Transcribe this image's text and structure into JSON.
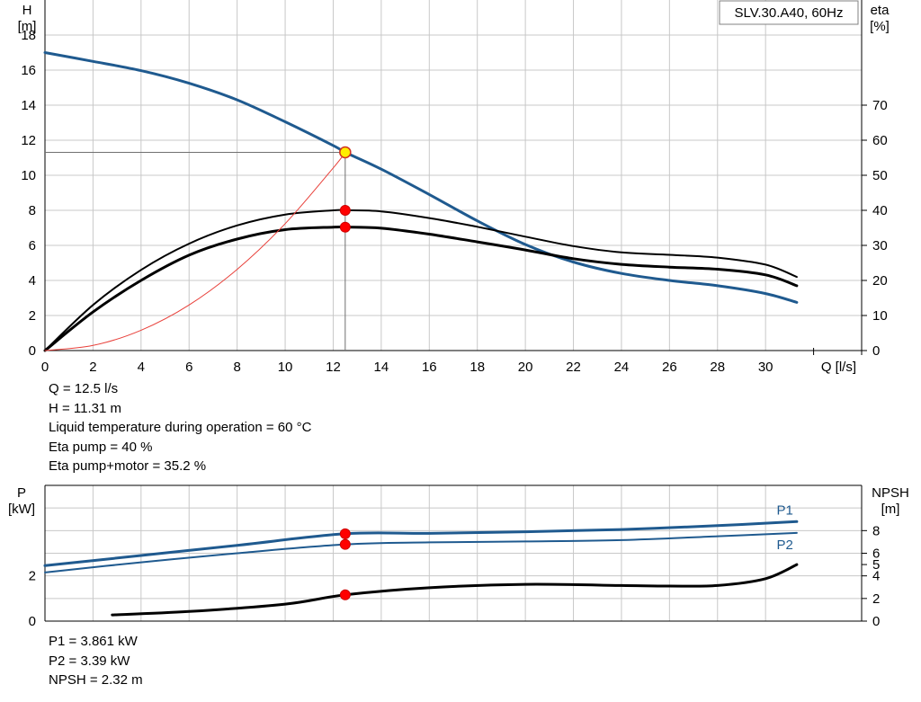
{
  "chart_data": [
    {
      "type": "line",
      "title": "SLV.30.A40, 60Hz",
      "xlabel": "Q [l/s]",
      "ylabel": "H\n[m]",
      "y2label": "eta\n[%]",
      "xlim": [
        0,
        34
      ],
      "ylim": [
        0,
        20
      ],
      "y2lim": [
        0,
        100
      ],
      "x_ticks": [
        0,
        2,
        4,
        6,
        8,
        10,
        12,
        14,
        16,
        18,
        20,
        22,
        24,
        26,
        28,
        30
      ],
      "y_ticks": [
        0,
        2,
        4,
        6,
        8,
        10,
        12,
        14,
        16,
        18
      ],
      "y2_ticks": [
        0,
        10,
        20,
        30,
        40,
        50,
        60,
        70
      ],
      "grid": true,
      "series": [
        {
          "axis": "y",
          "color": "#1f5a8f",
          "x": [
            0,
            2,
            4,
            6,
            8,
            10,
            12,
            12.5,
            14,
            16,
            18,
            20,
            22,
            24,
            26,
            28,
            30,
            31.3
          ],
          "y": [
            17.0,
            16.5,
            15.97,
            15.25,
            14.3,
            13.05,
            11.7,
            11.31,
            10.35,
            8.9,
            7.4,
            6.05,
            5.05,
            4.4,
            4.0,
            3.7,
            3.25,
            2.75
          ]
        },
        {
          "axis": "y2",
          "color": "#000000",
          "x": [
            0,
            2,
            4,
            6,
            8,
            10,
            12,
            12.5,
            14,
            16,
            18,
            20,
            22,
            24,
            26,
            28,
            30,
            31.3
          ],
          "y": [
            0,
            13,
            23,
            30.5,
            35.7,
            38.8,
            40,
            40,
            39.7,
            37.8,
            35.3,
            32.5,
            29.8,
            28,
            27.3,
            26.5,
            24.5,
            21
          ]
        },
        {
          "axis": "y2",
          "color": "#000000",
          "x": [
            0,
            2,
            4,
            6,
            8,
            10,
            12,
            12.5,
            14,
            16,
            18,
            20,
            22,
            24,
            26,
            28,
            30,
            31.3
          ],
          "y": [
            0,
            11,
            20,
            27.2,
            31.8,
            34.5,
            35.2,
            35.2,
            34.9,
            33.2,
            31,
            28.7,
            26.2,
            24.6,
            23.8,
            23.2,
            21.6,
            18.5
          ]
        },
        {
          "axis": "y",
          "color": "#e8403a",
          "x": [
            0,
            2,
            4,
            6,
            8,
            10,
            12,
            12.5
          ],
          "y": [
            0,
            0.29,
            1.16,
            2.6,
            4.63,
            7.24,
            10.42,
            11.31
          ]
        }
      ],
      "operating_point": {
        "x": 12.5,
        "y": 11.31
      },
      "markers": [
        {
          "x": 12.5,
          "y2": 40
        },
        {
          "x": 12.5,
          "y2": 35.2
        }
      ]
    },
    {
      "type": "line",
      "ylabel": "P\n[kW]",
      "y2label": "NPSH\n[m]",
      "xlim": [
        0,
        34
      ],
      "ylim": [
        0,
        6
      ],
      "y2lim": [
        0,
        12
      ],
      "y_ticks": [
        0,
        2
      ],
      "y2_ticks": [
        0,
        2,
        4,
        5,
        6,
        8
      ],
      "grid": true,
      "series": [
        {
          "name": "P1",
          "axis": "y",
          "color": "#1f5a8f",
          "x": [
            0,
            4,
            8,
            12.5,
            16,
            20,
            24,
            28,
            31.3
          ],
          "y": [
            2.45,
            2.9,
            3.35,
            3.861,
            3.88,
            3.95,
            4.05,
            4.22,
            4.4
          ]
        },
        {
          "name": "P2",
          "axis": "y",
          "color": "#1f5a8f",
          "x": [
            0,
            4,
            8,
            12.5,
            16,
            20,
            24,
            28,
            31.3
          ],
          "y": [
            2.15,
            2.6,
            3.0,
            3.39,
            3.48,
            3.52,
            3.58,
            3.75,
            3.9
          ]
        },
        {
          "axis": "y2",
          "color": "#000000",
          "x": [
            2.8,
            6,
            10,
            12.5,
            16,
            20,
            24,
            26,
            28,
            30,
            31.3
          ],
          "y": [
            0.55,
            0.85,
            1.5,
            2.32,
            2.95,
            3.25,
            3.15,
            3.1,
            3.15,
            3.75,
            5.0
          ]
        }
      ],
      "markers": [
        {
          "x": 12.5,
          "y": 3.861
        },
        {
          "x": 12.5,
          "y": 3.39
        },
        {
          "x": 12.5,
          "y2": 2.32
        }
      ]
    }
  ],
  "top_info": [
    "Q = 12.5 l/s",
    "H = 11.31 m",
    "Liquid temperature during operation = 60 °C",
    "Eta pump = 40 %",
    "Eta pump+motor = 35.2 %"
  ],
  "bottom_info": [
    "P1 = 3.861 kW",
    "P2 = 3.39 kW",
    "NPSH = 2.32 m"
  ]
}
